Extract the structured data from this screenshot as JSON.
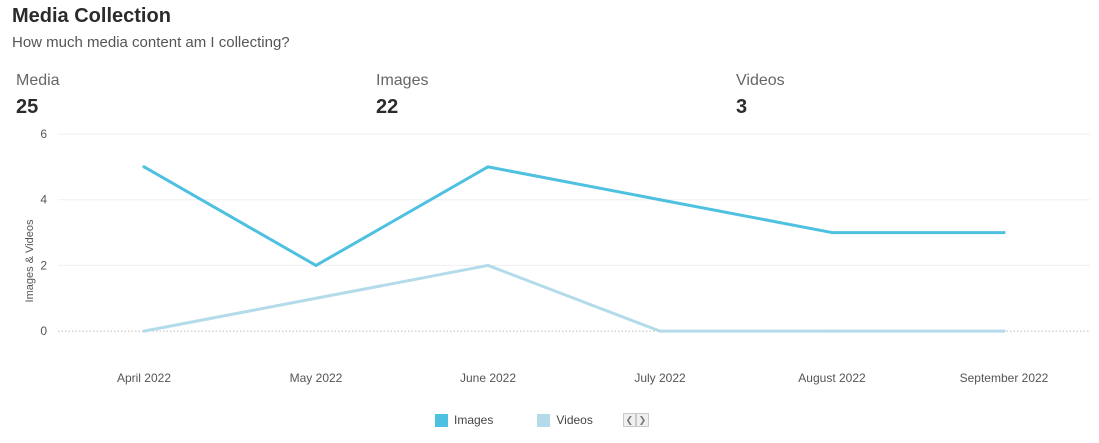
{
  "header": {
    "title": "Media Collection",
    "subtitle": "How much media content am I collecting?"
  },
  "kpis": [
    {
      "label": "Media",
      "value": "25"
    },
    {
      "label": "Images",
      "value": "22"
    },
    {
      "label": "Videos",
      "value": "3"
    }
  ],
  "chart_data": {
    "type": "line",
    "title": "",
    "xlabel": "",
    "ylabel": "Images & Videos",
    "categories": [
      "April 2022",
      "May 2022",
      "June 2022",
      "July 2022",
      "August 2022",
      "September 2022"
    ],
    "series": [
      {
        "name": "Images",
        "color": "#4fc1e0",
        "values": [
          5,
          2,
          5,
          4,
          3,
          3
        ]
      },
      {
        "name": "Videos",
        "color": "#b3dbea",
        "values": [
          0,
          1,
          2,
          0,
          0,
          0
        ]
      }
    ],
    "ylim": [
      -1,
      6
    ],
    "yticks": [
      0,
      2,
      4,
      6
    ],
    "grid": true,
    "legend": "bottom-center"
  }
}
